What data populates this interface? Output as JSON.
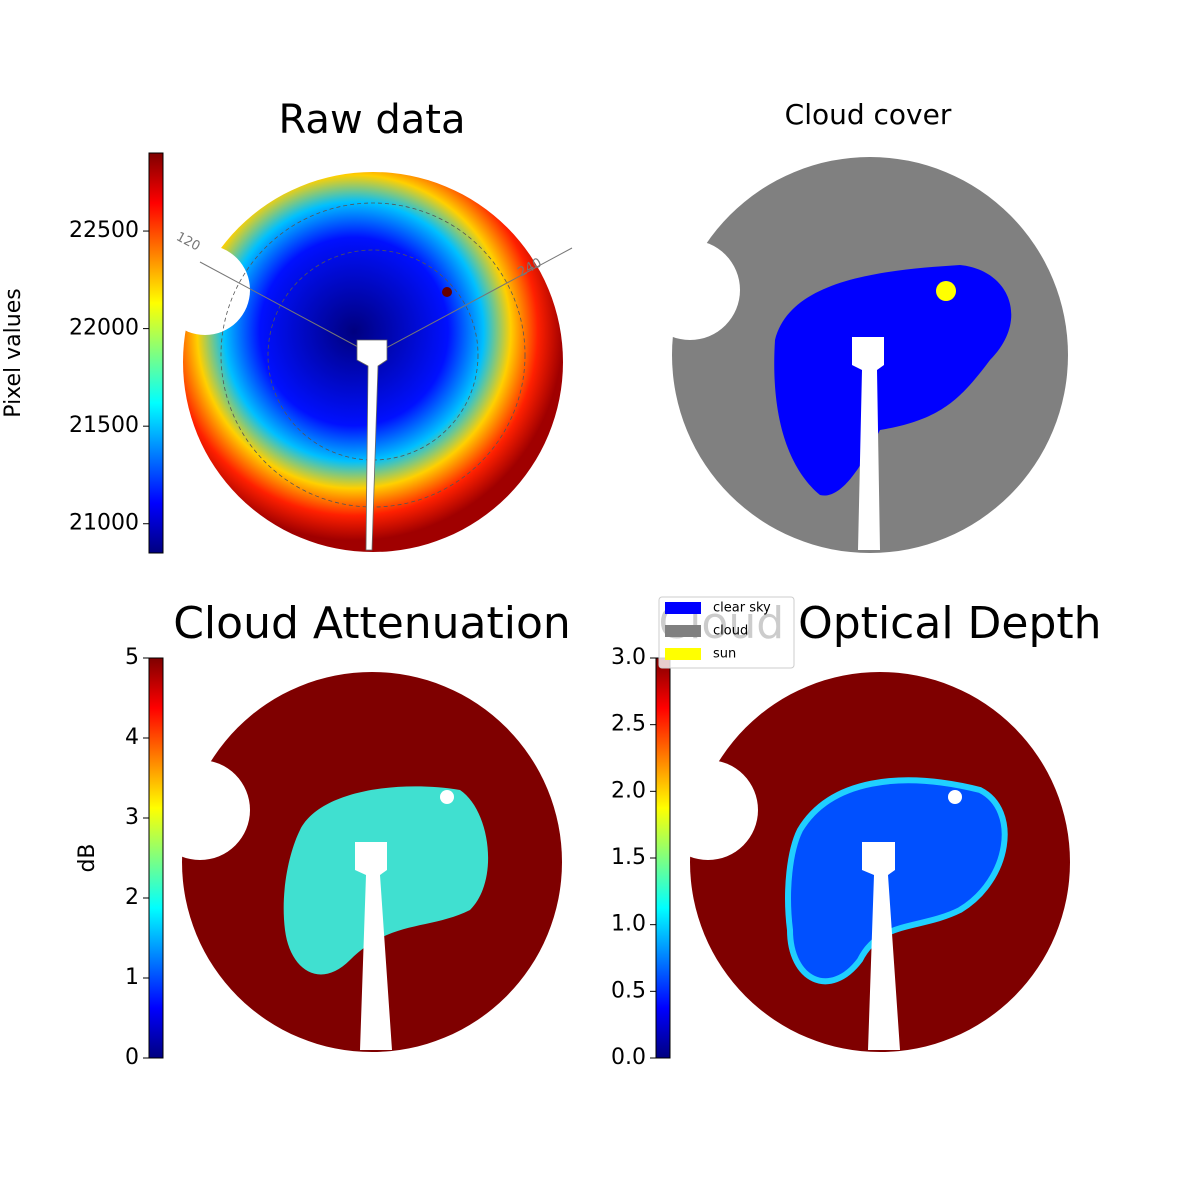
{
  "chart_data": [
    {
      "type": "image",
      "title": "Raw data",
      "colormap": "jet",
      "colorbar": {
        "label": "Pixel values",
        "lim": [
          20850,
          22900
        ],
        "ticks": [
          21000,
          21500,
          22000,
          22500
        ]
      },
      "annotations": [
        "120",
        "240"
      ]
    },
    {
      "type": "image",
      "title": "Cloud cover",
      "legend": {
        "entries": [
          {
            "name": "clear sky",
            "color": "#0000ff"
          },
          {
            "name": "cloud",
            "color": "#808080"
          },
          {
            "name": "sun",
            "color": "#ffff00"
          }
        ]
      }
    },
    {
      "type": "image",
      "title": "Cloud Attenuation",
      "colormap": "jet",
      "colorbar": {
        "label": "dB",
        "lim": [
          0,
          5
        ],
        "ticks": [
          0,
          1,
          2,
          3,
          4,
          5
        ]
      }
    },
    {
      "type": "image",
      "title": "Cloud Optical Depth",
      "colormap": "jet",
      "colorbar": {
        "lim": [
          0,
          3
        ],
        "ticks": [
          {
            "value": 0,
            "label": "0.0"
          },
          0.5,
          {
            "value": 1,
            "label": "1.0"
          },
          1.5,
          {
            "value": 2,
            "label": "2.0"
          },
          2.5,
          {
            "value": 3,
            "label": "3.0"
          }
        ]
      }
    }
  ]
}
